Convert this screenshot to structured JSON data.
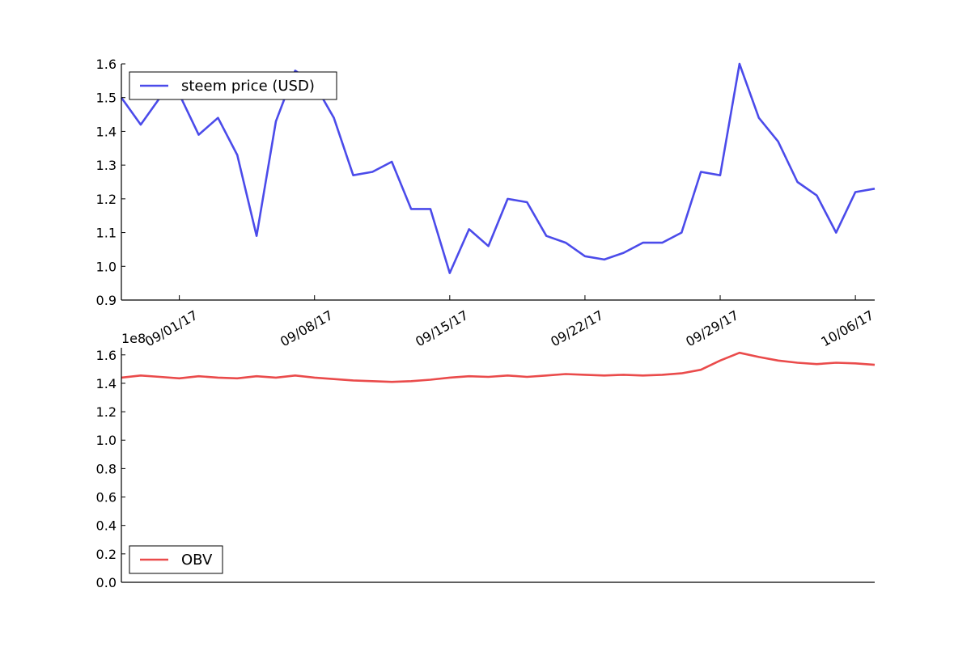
{
  "chart_data": [
    {
      "type": "line",
      "x": [
        "08/29/17",
        "08/30/17",
        "08/31/17",
        "09/01/17",
        "09/02/17",
        "09/03/17",
        "09/04/17",
        "09/05/17",
        "09/06/17",
        "09/07/17",
        "09/08/17",
        "09/09/17",
        "09/10/17",
        "09/11/17",
        "09/12/17",
        "09/13/17",
        "09/14/17",
        "09/15/17",
        "09/16/17",
        "09/17/17",
        "09/18/17",
        "09/19/17",
        "09/20/17",
        "09/21/17",
        "09/22/17",
        "09/23/17",
        "09/24/17",
        "09/25/17",
        "09/26/17",
        "09/27/17",
        "09/28/17",
        "09/29/17",
        "09/30/17",
        "10/01/17",
        "10/02/17",
        "10/03/17",
        "10/04/17",
        "10/05/17",
        "10/06/17",
        "10/07/17"
      ],
      "x_tick_labels": [
        "09/01/17",
        "09/08/17",
        "09/15/17",
        "09/22/17",
        "09/29/17",
        "10/06/17"
      ],
      "y_tick_labels": [
        "0.9",
        "1.0",
        "1.1",
        "1.2",
        "1.3",
        "1.4",
        "1.5",
        "1.6"
      ],
      "ylim": [
        0.9,
        1.6
      ],
      "grid": false,
      "legend_position": "top-left",
      "series": [
        {
          "name": "steem price (USD)",
          "color": "#4b4bea",
          "values": [
            1.5,
            1.42,
            1.5,
            1.51,
            1.39,
            1.44,
            1.33,
            1.09,
            1.43,
            1.58,
            1.54,
            1.44,
            1.27,
            1.28,
            1.31,
            1.17,
            1.17,
            0.98,
            1.11,
            1.06,
            1.2,
            1.19,
            1.09,
            1.07,
            1.03,
            1.02,
            1.04,
            1.07,
            1.07,
            1.1,
            1.28,
            1.27,
            1.6,
            1.44,
            1.37,
            1.25,
            1.21,
            1.1,
            1.22,
            1.23
          ]
        }
      ]
    },
    {
      "type": "line",
      "x": [
        "08/29/17",
        "08/30/17",
        "08/31/17",
        "09/01/17",
        "09/02/17",
        "09/03/17",
        "09/04/17",
        "09/05/17",
        "09/06/17",
        "09/07/17",
        "09/08/17",
        "09/09/17",
        "09/10/17",
        "09/11/17",
        "09/12/17",
        "09/13/17",
        "09/14/17",
        "09/15/17",
        "09/16/17",
        "09/17/17",
        "09/18/17",
        "09/19/17",
        "09/20/17",
        "09/21/17",
        "09/22/17",
        "09/23/17",
        "09/24/17",
        "09/25/17",
        "09/26/17",
        "09/27/17",
        "09/28/17",
        "09/29/17",
        "09/30/17",
        "10/01/17",
        "10/02/17",
        "10/03/17",
        "10/04/17",
        "10/05/17",
        "10/06/17",
        "10/07/17"
      ],
      "y_scale_label": "1e8",
      "y_tick_labels": [
        "0.0",
        "0.2",
        "0.4",
        "0.6",
        "0.8",
        "1.0",
        "1.2",
        "1.4",
        "1.6"
      ],
      "ylim": [
        0.0,
        1.65
      ],
      "grid": false,
      "legend_position": "bottom-left",
      "series": [
        {
          "name": "OBV",
          "color": "#ea4b4b",
          "values": [
            1.44,
            1.455,
            1.445,
            1.435,
            1.45,
            1.44,
            1.435,
            1.45,
            1.44,
            1.455,
            1.44,
            1.43,
            1.42,
            1.415,
            1.41,
            1.415,
            1.425,
            1.44,
            1.45,
            1.445,
            1.455,
            1.445,
            1.455,
            1.465,
            1.46,
            1.455,
            1.46,
            1.455,
            1.46,
            1.47,
            1.495,
            1.56,
            1.615,
            1.585,
            1.56,
            1.545,
            1.535,
            1.545,
            1.54,
            1.53
          ]
        }
      ]
    }
  ]
}
